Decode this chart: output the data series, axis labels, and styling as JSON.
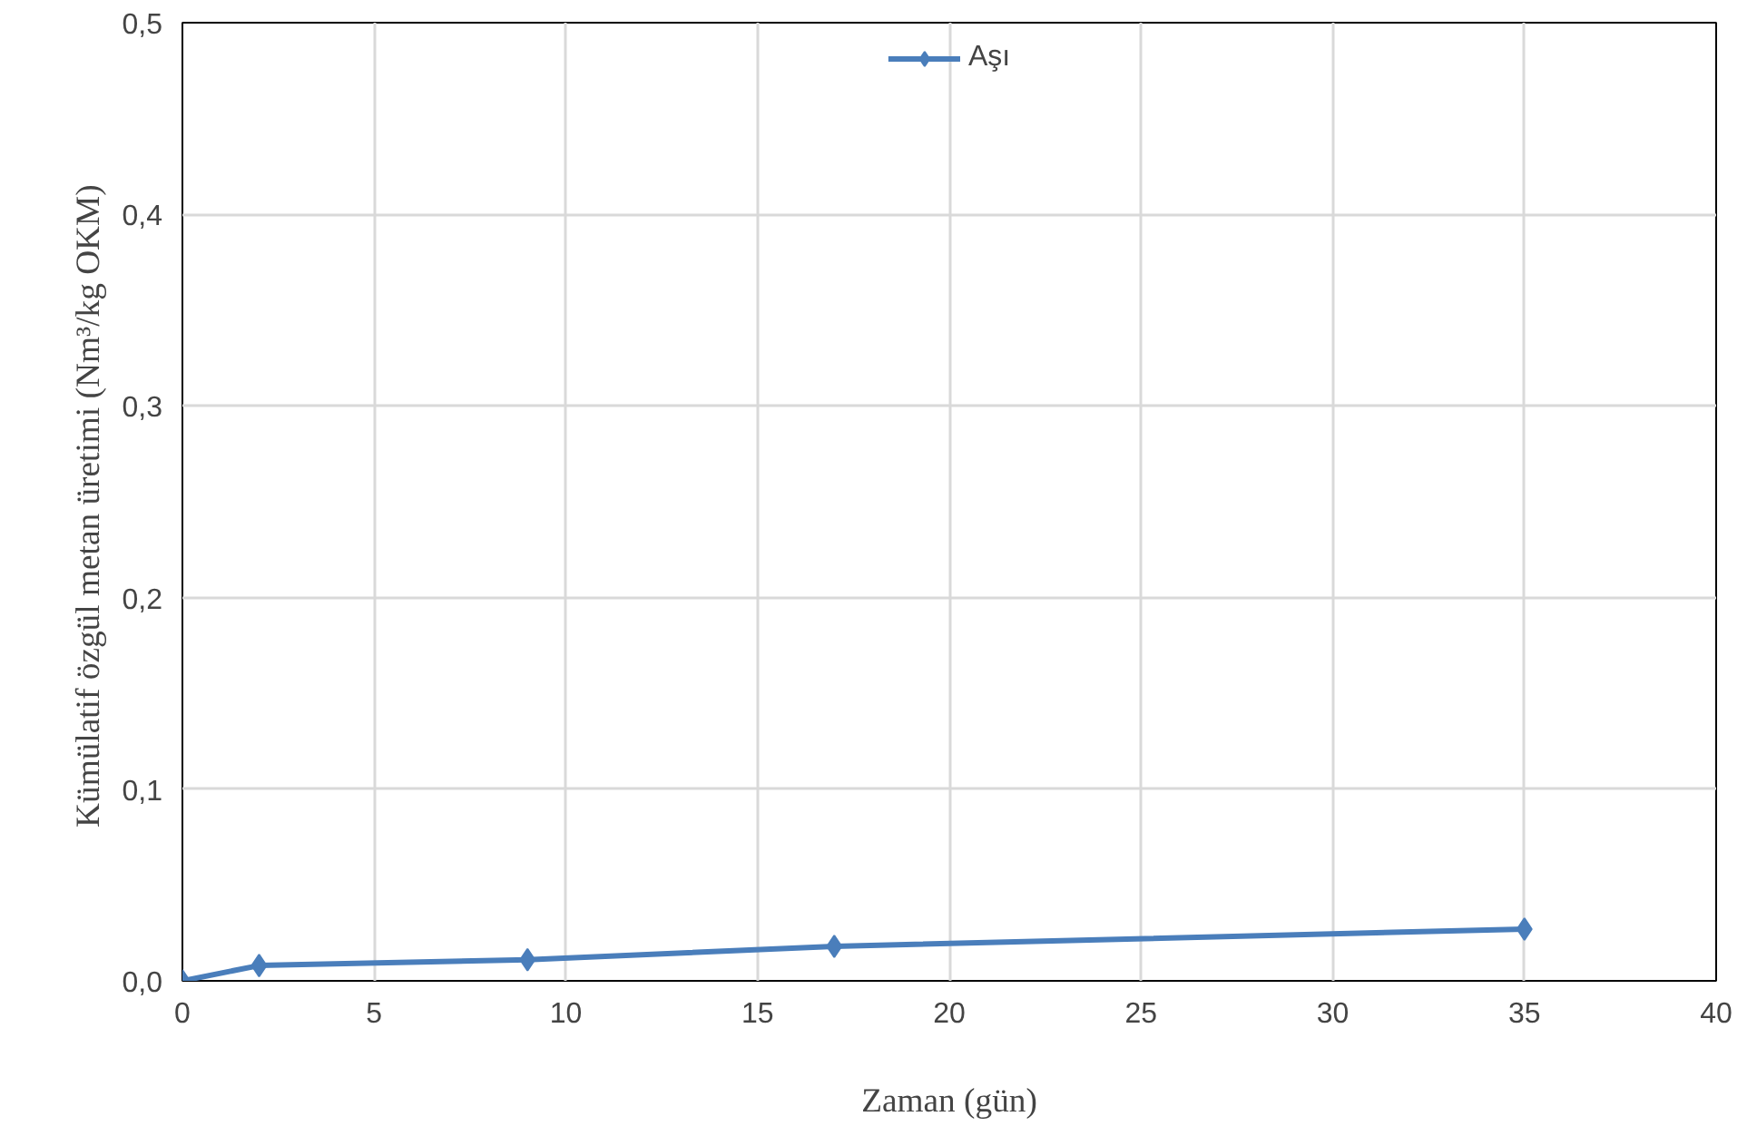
{
  "chart_data": {
    "type": "line",
    "xlabel": "Zaman (gün)",
    "ylabel": "Kümülatif özgül metan üretimi  (Nm³/kg OKM)",
    "x": [
      0,
      2,
      9,
      17,
      35
    ],
    "series": [
      {
        "name": "Aşı",
        "color": "#4a7ebb",
        "values": [
          0.0,
          0.008,
          0.011,
          0.018,
          0.027
        ]
      }
    ],
    "xlim": [
      0,
      40
    ],
    "xticks": [
      0,
      5,
      10,
      15,
      20,
      25,
      30,
      35,
      40
    ],
    "ylim": [
      0,
      0.5
    ],
    "yticks": [
      {
        "value": 0,
        "label": "0,0"
      },
      {
        "value": 0.1,
        "label": "0,1"
      },
      {
        "value": 0.2,
        "label": "0,2"
      },
      {
        "value": 0.3,
        "label": "0,3"
      },
      {
        "value": 0.4,
        "label": "0,4"
      },
      {
        "value": 0.5,
        "label": "0,5"
      }
    ],
    "grid": true,
    "legend": "top",
    "marker": "diamond",
    "line_style": "solid"
  }
}
